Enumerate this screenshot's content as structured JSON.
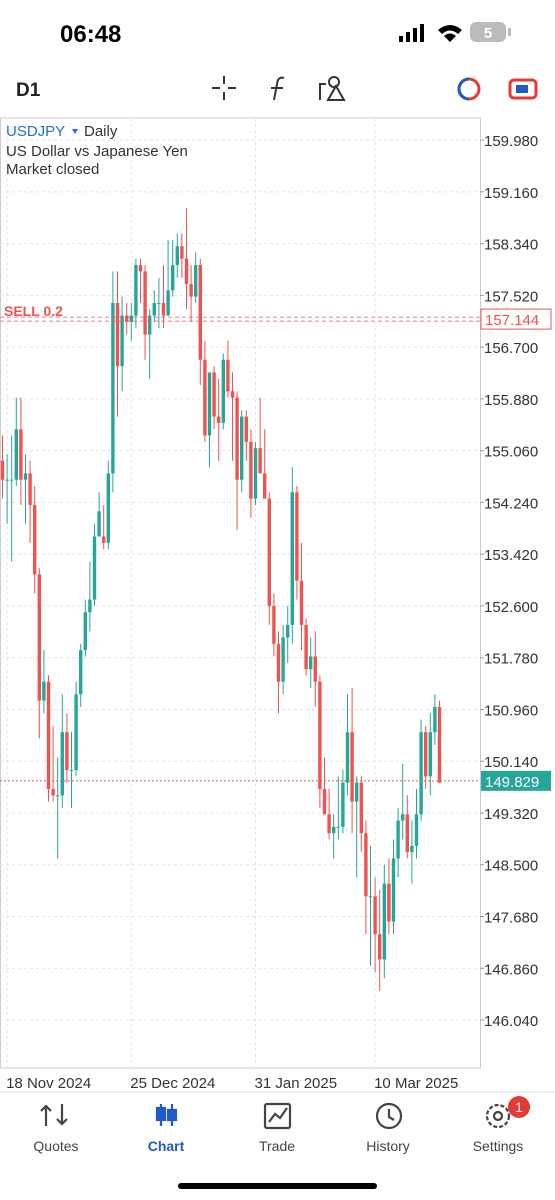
{
  "status_bar": {
    "time": "06:48",
    "battery": "5"
  },
  "toolbar": {
    "timeframe": "D1"
  },
  "nav": {
    "items": [
      "Quotes",
      "Chart",
      "Trade",
      "History",
      "Settings"
    ],
    "badge": "1"
  },
  "chart_data": {
    "type": "candlestick",
    "symbol": "USDJPY",
    "period": "Daily",
    "description": "US Dollar vs Japanese Yen",
    "status": "Market closed",
    "categories": [
      null,
      "18 Nov 2024",
      null,
      null,
      null,
      null,
      null,
      null,
      null,
      null,
      null,
      null,
      null,
      null,
      null,
      null,
      null,
      null,
      null,
      null,
      null,
      null,
      null,
      null,
      null,
      null,
      null,
      null,
      "25 Dec 2024",
      null,
      null,
      null,
      null,
      null,
      null,
      null,
      null,
      null,
      null,
      null,
      null,
      null,
      null,
      null,
      null,
      null,
      null,
      null,
      null,
      null,
      null,
      null,
      null,
      null,
      null,
      "31 Jan 2025",
      null,
      null,
      null,
      null,
      null,
      null,
      null,
      null,
      null,
      null,
      null,
      null,
      null,
      null,
      null,
      null,
      null,
      null,
      null,
      null,
      null,
      null,
      null,
      null,
      null,
      "10 Mar 2025",
      null,
      null,
      null,
      null,
      null,
      null,
      null,
      null,
      null,
      null,
      null,
      null,
      null,
      null
    ],
    "open": [
      154.9,
      154.6,
      154.6,
      154.6,
      155.4,
      154.6,
      154.7,
      154.2,
      153.1,
      151.1,
      151.4,
      149.7,
      149.6,
      149.6,
      150.6,
      150.0,
      150.0,
      151.2,
      151.9,
      152.5,
      152.7,
      153.7,
      153.7,
      153.6,
      154.7,
      157.4,
      156.4,
      157.2,
      157.1,
      157.2,
      158.0,
      157.9,
      156.9,
      157.2,
      157.4,
      157.4,
      157.2,
      157.6,
      158.0,
      158.3,
      158.1,
      157.7,
      157.5,
      158.0,
      156.5,
      155.3,
      156.3,
      155.6,
      155.5,
      156.5,
      156.0,
      155.9,
      154.6,
      155.6,
      155.2,
      154.3,
      155.1,
      154.7,
      154.3,
      152.6,
      152.0,
      151.4,
      152.1,
      152.3,
      154.4,
      153.0,
      152.3,
      151.6,
      151.8,
      151.4,
      149.7,
      149.3,
      149.0,
      149.1,
      149.1,
      149.8,
      150.6,
      149.5,
      149.8,
      149.0,
      148.0,
      148.0,
      147.4,
      147.0,
      148.2,
      147.6,
      148.6,
      149.2,
      149.3,
      148.7,
      148.8,
      149.3,
      150.6,
      149.9,
      150.6,
      151.0
    ],
    "high": [
      155.3,
      155.0,
      155.3,
      155.9,
      155.9,
      155.0,
      154.9,
      154.5,
      153.2,
      151.9,
      151.5,
      150.7,
      150.2,
      151.2,
      150.9,
      150.6,
      151.4,
      152.0,
      152.7,
      153.3,
      153.9,
      154.4,
      154.2,
      154.9,
      157.9,
      157.9,
      157.5,
      157.4,
      157.4,
      158.1,
      158.1,
      158.0,
      157.3,
      157.6,
      157.8,
      158.0,
      158.4,
      158.4,
      158.5,
      158.5,
      158.9,
      158.0,
      158.2,
      158.1,
      156.8,
      156.3,
      156.4,
      156.2,
      156.6,
      156.8,
      156.3,
      156.0,
      155.7,
      155.7,
      155.4,
      155.2,
      155.9,
      155.4,
      154.4,
      152.8,
      152.2,
      152.3,
      152.6,
      154.8,
      154.5,
      153.6,
      152.4,
      152.1,
      152.2,
      151.5,
      150.2,
      149.7,
      149.3,
      149.9,
      150.0,
      151.2,
      151.3,
      149.9,
      149.9,
      149.2,
      148.8,
      148.3,
      148.1,
      148.5,
      148.6,
      148.9,
      149.4,
      150.1,
      149.6,
      149.2,
      149.7,
      150.8,
      150.7,
      150.9,
      151.2,
      151.1
    ],
    "low": [
      154.3,
      153.9,
      153.3,
      154.5,
      154.2,
      153.9,
      153.6,
      152.8,
      150.5,
      150.9,
      149.5,
      149.5,
      148.6,
      149.4,
      149.8,
      149.4,
      149.9,
      151.0,
      151.8,
      152.2,
      152.6,
      153.7,
      153.5,
      153.5,
      154.4,
      155.6,
      156.0,
      156.9,
      156.8,
      157.0,
      157.4,
      156.5,
      156.2,
      157.1,
      157.0,
      157.0,
      157.2,
      157.5,
      157.8,
      157.8,
      157.3,
      157.1,
      157.4,
      156.1,
      155.2,
      154.8,
      155.4,
      154.9,
      155.4,
      155.9,
      154.9,
      153.8,
      154.4,
      154.9,
      154.0,
      154.2,
      154.7,
      154.3,
      152.3,
      151.8,
      150.9,
      151.2,
      151.7,
      152.0,
      152.7,
      151.9,
      151.5,
      151.3,
      151.0,
      149.4,
      149.3,
      148.9,
      148.6,
      148.9,
      149.0,
      149.6,
      149.0,
      148.3,
      148.7,
      147.4,
      146.9,
      146.8,
      146.5,
      146.7,
      147.4,
      147.4,
      148.3,
      148.9,
      148.6,
      148.2,
      148.6,
      149.2,
      149.7,
      149.6,
      150.4,
      149.8
    ],
    "close": [
      154.6,
      154.6,
      154.6,
      155.4,
      154.6,
      154.7,
      154.2,
      153.1,
      151.1,
      151.4,
      149.7,
      149.6,
      149.6,
      150.6,
      150.0,
      150.0,
      151.2,
      151.9,
      152.5,
      152.7,
      153.7,
      154.1,
      153.6,
      154.7,
      157.4,
      156.4,
      157.2,
      157.1,
      157.2,
      158.0,
      157.9,
      156.9,
      157.2,
      157.4,
      157.4,
      157.2,
      157.6,
      158.0,
      158.3,
      158.1,
      157.7,
      157.5,
      158.0,
      156.5,
      155.3,
      156.3,
      155.6,
      155.5,
      156.5,
      156.0,
      155.9,
      154.6,
      155.6,
      155.2,
      154.3,
      155.1,
      154.7,
      154.3,
      152.6,
      152.0,
      151.4,
      152.1,
      152.3,
      154.4,
      153.0,
      152.3,
      151.6,
      151.8,
      151.4,
      149.7,
      149.3,
      149.0,
      149.1,
      149.1,
      149.8,
      150.6,
      149.5,
      149.8,
      149.0,
      148.0,
      148.0,
      147.4,
      147.0,
      148.2,
      147.6,
      148.6,
      149.2,
      149.3,
      148.7,
      148.8,
      149.3,
      150.6,
      149.9,
      150.6,
      151.0,
      149.8
    ],
    "up_color": "#26a69a",
    "down_color": "#ef5350",
    "ylim": [
      145.28,
      160.33
    ],
    "yticks": [
      {
        "value": 159.98,
        "label": "159.980"
      },
      {
        "value": 159.16,
        "label": "159.160"
      },
      {
        "value": 158.34,
        "label": "158.340"
      },
      {
        "value": 157.52,
        "label": "157.520"
      },
      {
        "value": 156.7,
        "label": "156.700"
      },
      {
        "value": 155.88,
        "label": "155.880"
      },
      {
        "value": 155.06,
        "label": "155.060"
      },
      {
        "value": 154.24,
        "label": "154.240"
      },
      {
        "value": 153.42,
        "label": "153.420"
      },
      {
        "value": 152.6,
        "label": "152.600"
      },
      {
        "value": 151.78,
        "label": "151.780"
      },
      {
        "value": 150.96,
        "label": "150.960"
      },
      {
        "value": 150.14,
        "label": "150.140"
      },
      {
        "value": 149.32,
        "label": "149.320"
      },
      {
        "value": 148.5,
        "label": "148.500"
      },
      {
        "value": 147.68,
        "label": "147.680"
      },
      {
        "value": 146.86,
        "label": "146.860"
      },
      {
        "value": 146.04,
        "label": "146.040"
      }
    ],
    "grid": true,
    "bid": {
      "value": 149.829,
      "label": "149.829"
    },
    "order": {
      "label": "SELL 0.2",
      "price": {
        "value": 157.144,
        "label": "157.144"
      }
    }
  }
}
